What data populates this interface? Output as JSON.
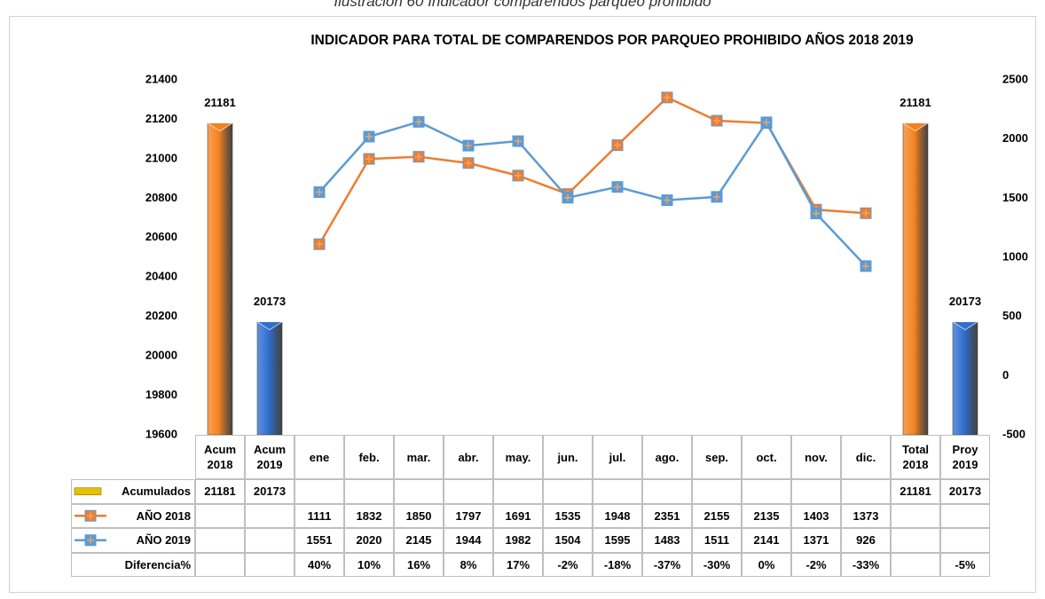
{
  "caption": "Ilustración 60 Indicador comparendos parqueo prohibido",
  "chart_data": {
    "type": "bar",
    "title": "INDICADOR PARA TOTAL DE COMPARENDOS POR PARQUEO PROHIBIDO AÑOS 2018 2019",
    "categories": [
      "Acum 2018",
      "Acum 2019",
      "ene",
      "feb.",
      "mar.",
      "abr.",
      "may.",
      "jun.",
      "jul.",
      "ago.",
      "sep.",
      "oct.",
      "nov.",
      "dic.",
      "Total 2018",
      "Proy 2019"
    ],
    "ylim": [
      19600,
      21400
    ],
    "yticks": [
      19600,
      19800,
      20000,
      20200,
      20400,
      20600,
      20800,
      21000,
      21200,
      21400
    ],
    "y2lim": [
      -500,
      2500
    ],
    "y2ticks": [
      -500,
      0,
      500,
      1000,
      1500,
      2000,
      2500
    ],
    "series": [
      {
        "name": "Acumulados",
        "type": "bar",
        "color": "#e8c000",
        "colors": [
          "#f58220",
          "#2f6fd0",
          null,
          null,
          null,
          null,
          null,
          null,
          null,
          null,
          null,
          null,
          null,
          null,
          "#f58220",
          "#2f6fd0"
        ],
        "values": [
          21181,
          20173,
          null,
          null,
          null,
          null,
          null,
          null,
          null,
          null,
          null,
          null,
          null,
          null,
          21181,
          20173
        ]
      },
      {
        "name": "AÑO 2018",
        "type": "line",
        "axis": "y2",
        "color": "#ed7d31",
        "values": [
          null,
          null,
          1111,
          1832,
          1850,
          1797,
          1691,
          1535,
          1948,
          2351,
          2155,
          2135,
          1403,
          1373,
          null,
          null
        ]
      },
      {
        "name": "AÑO 2019",
        "type": "line",
        "axis": "y2",
        "color": "#5b9bd5",
        "values": [
          null,
          null,
          1551,
          2020,
          2145,
          1944,
          1982,
          1504,
          1595,
          1483,
          1511,
          2141,
          1371,
          926,
          null,
          null
        ]
      }
    ],
    "difference": {
      "name": "Diferencia%",
      "values": [
        null,
        null,
        40,
        10,
        16,
        8,
        17,
        -2,
        -18,
        -37,
        -30,
        0,
        -2,
        -33,
        null,
        -5
      ],
      "value_labels": [
        null,
        null,
        "40%",
        "10%",
        "16%",
        "8%",
        "17%",
        "-2%",
        "-18%",
        "-37%",
        "-30%",
        "0%",
        "-2%",
        "-33%",
        null,
        "-5%"
      ]
    }
  }
}
